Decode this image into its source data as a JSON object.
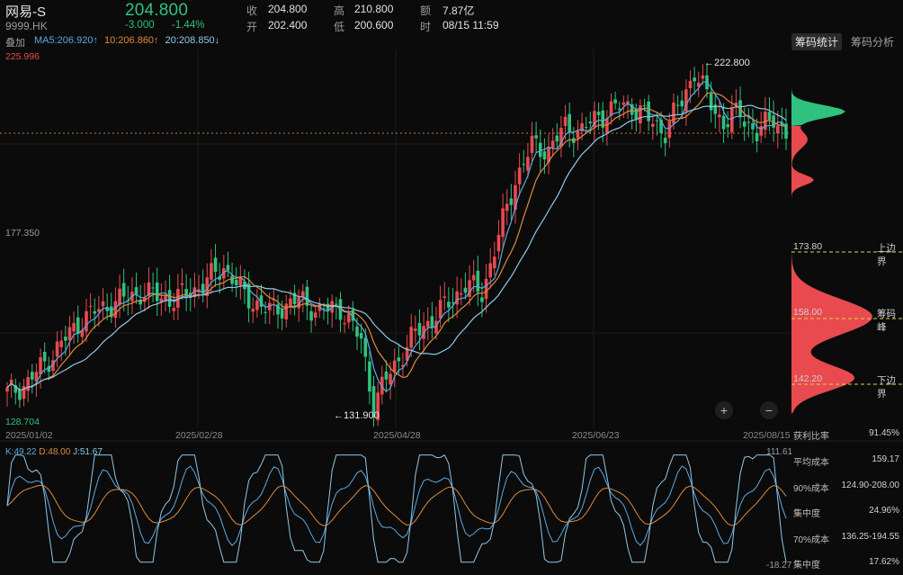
{
  "header": {
    "name": "网易-S",
    "code": "9999.HK",
    "price": "204.800",
    "change": "-3.000",
    "change_pct": "-1.44%",
    "quotes": [
      {
        "label": "收",
        "value": "204.800"
      },
      {
        "label": "开",
        "value": "202.400"
      },
      {
        "label": "高",
        "value": "210.800"
      },
      {
        "label": "低",
        "value": "200.600"
      },
      {
        "label": "额",
        "value": "7.87亿"
      },
      {
        "label": "时",
        "value": "08/15 11:59"
      }
    ]
  },
  "overlay": {
    "label": "叠加",
    "ma5": "MA5:206.920↑",
    "ma10": "10:206.860↑",
    "ma20": "20:208.850↓"
  },
  "tabs": [
    "筹码统计",
    "筹码分析"
  ],
  "price_axis": {
    "top": "225.996",
    "mid": "177.350",
    "bottom": "128.704"
  },
  "annotations": {
    "high": "←222.800",
    "low": "←131.900"
  },
  "dates": [
    "2025/01/02",
    "2025/02/28",
    "2025/04/28",
    "2025/06/23",
    "2025/08/15"
  ],
  "chip_levels": [
    {
      "value": "173.80",
      "label": "上边界"
    },
    {
      "value": "158.00",
      "label": "筹码峰"
    },
    {
      "value": "142.20",
      "label": "下边界"
    }
  ],
  "zoom": {
    "in": "+",
    "out": "−"
  },
  "kdj": {
    "k": "K:49.22",
    "d": "D:48.00",
    "j": "J:51.67",
    "top": "111.61",
    "bottom": "-18.27"
  },
  "stats": [
    {
      "label": "获利比率",
      "value": "91.45%"
    },
    {
      "label": "平均成本",
      "value": "159.17"
    },
    {
      "label": "90%成本",
      "value": "124.90-208.00"
    },
    {
      "label": "集中度",
      "value": "24.96%"
    },
    {
      "label": "70%成本",
      "value": "136.25-194.55"
    },
    {
      "label": "集中度",
      "value": "17.62%"
    }
  ],
  "colors": {
    "up": "#e84a4f",
    "down": "#2ec27e",
    "ma5": "#5fa8e0",
    "ma10": "#e08a3c",
    "ma20": "#8fc8e8"
  }
}
